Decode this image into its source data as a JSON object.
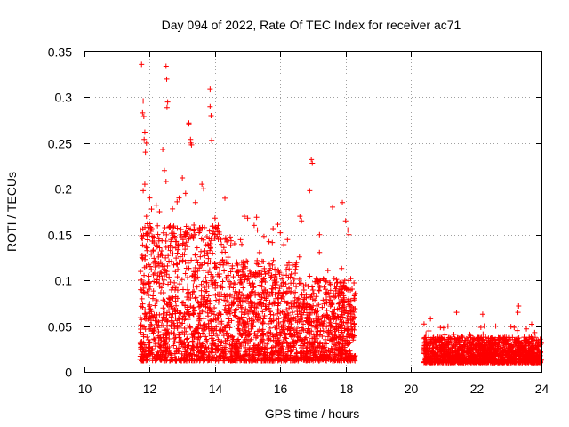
{
  "chart_data": {
    "type": "scatter",
    "title": "Day 094 of 2022, Rate Of TEC Index for receiver ac71",
    "xlabel": "GPS time / hours",
    "ylabel": "ROTI / TECUs",
    "xlim": [
      10,
      24
    ],
    "ylim": [
      0,
      0.35
    ],
    "x_ticks": [
      10,
      12,
      14,
      16,
      18,
      20,
      22,
      24
    ],
    "x_tick_labels": [
      "10",
      "12",
      "14",
      "16",
      "18",
      "20",
      "22",
      "24"
    ],
    "y_ticks": [
      0,
      0.05,
      0.1,
      0.15,
      0.2,
      0.25,
      0.3,
      0.35
    ],
    "y_tick_labels": [
      "0",
      "0.05",
      "0.1",
      "0.15",
      "0.2",
      "0.25",
      "0.3",
      "0.35"
    ],
    "grid": true,
    "marker": "plus",
    "color": "#ff0000",
    "series": [
      {
        "segments": [
          {
            "x_start": 11.7,
            "x_end": 18.3,
            "count": 2600
          },
          {
            "x_start": 20.4,
            "x_end": 24.0,
            "count": 1500
          }
        ],
        "points": [
          [
            11.75,
            0.336
          ],
          [
            12.5,
            0.334
          ],
          [
            12.52,
            0.32
          ],
          [
            13.85,
            0.309
          ],
          [
            11.8,
            0.296
          ],
          [
            11.78,
            0.283
          ],
          [
            11.82,
            0.279
          ],
          [
            12.55,
            0.295
          ],
          [
            12.53,
            0.289
          ],
          [
            13.2,
            0.271
          ],
          [
            13.85,
            0.29
          ],
          [
            13.88,
            0.28
          ],
          [
            11.85,
            0.262
          ],
          [
            11.83,
            0.254
          ],
          [
            11.9,
            0.25
          ],
          [
            11.87,
            0.24
          ],
          [
            13.25,
            0.254
          ],
          [
            13.28,
            0.248
          ],
          [
            13.9,
            0.253
          ],
          [
            12.4,
            0.243
          ],
          [
            12.45,
            0.22
          ],
          [
            12.5,
            0.208
          ],
          [
            13.0,
            0.212
          ],
          [
            13.6,
            0.205
          ],
          [
            13.65,
            0.2
          ],
          [
            16.95,
            0.232
          ],
          [
            16.98,
            0.228
          ],
          [
            16.9,
            0.198
          ],
          [
            11.8,
            0.198
          ],
          [
            11.85,
            0.205
          ],
          [
            12.0,
            0.19
          ],
          [
            12.2,
            0.182
          ],
          [
            12.3,
            0.175
          ],
          [
            12.7,
            0.178
          ],
          [
            12.9,
            0.19
          ],
          [
            13.1,
            0.195
          ],
          [
            13.4,
            0.185
          ],
          [
            14.0,
            0.168
          ],
          [
            14.1,
            0.16
          ],
          [
            15.0,
            0.168
          ],
          [
            15.2,
            0.16
          ],
          [
            15.3,
            0.155
          ],
          [
            15.5,
            0.148
          ],
          [
            16.6,
            0.17
          ],
          [
            16.65,
            0.165
          ],
          [
            17.6,
            0.18
          ],
          [
            17.9,
            0.185
          ],
          [
            18.0,
            0.165
          ],
          [
            18.1,
            0.15
          ],
          [
            17.2,
            0.15
          ],
          [
            16.0,
            0.152
          ],
          [
            14.6,
            0.14
          ],
          [
            20.6,
            0.058
          ],
          [
            21.4,
            0.065
          ],
          [
            22.2,
            0.063
          ],
          [
            23.3,
            0.072
          ],
          [
            23.28,
            0.065
          ],
          [
            23.7,
            0.052
          ],
          [
            21.0,
            0.048
          ],
          [
            22.6,
            0.05
          ],
          [
            13.2,
            0.272
          ],
          [
            13.26,
            0.25
          ],
          [
            14.9,
            0.17
          ],
          [
            11.9,
            0.17
          ]
        ]
      }
    ]
  }
}
